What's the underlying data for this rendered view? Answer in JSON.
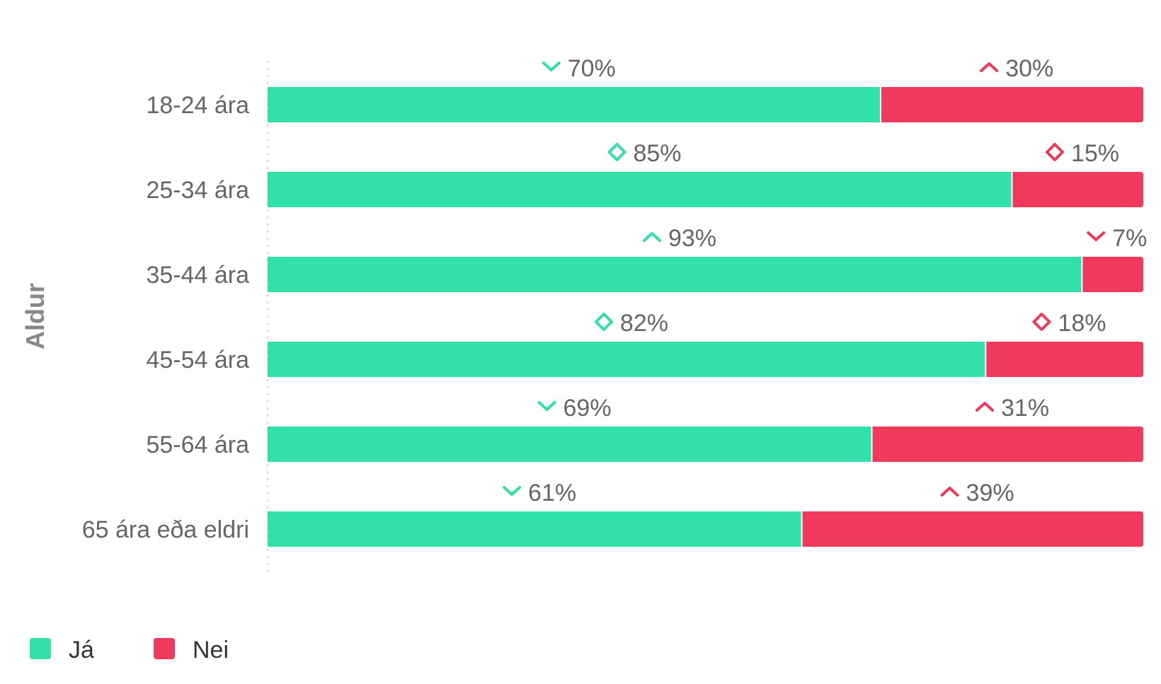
{
  "chart_data": {
    "type": "bar",
    "orientation": "horizontal",
    "stacked": "percent",
    "categories": [
      "18-24 ára",
      "25-34 ára",
      "35-44 ára",
      "45-54 ára",
      "55-64 ára",
      "65 ára eða eldri"
    ],
    "series": [
      {
        "name": "Já",
        "color": "#33e0aa",
        "values": [
          70,
          85,
          93,
          82,
          69,
          61
        ],
        "labels": [
          "70%",
          "85%",
          "93%",
          "82%",
          "69%",
          "61%"
        ],
        "trend_icons": [
          "chevron-down",
          "diamond",
          "chevron-up",
          "diamond",
          "chevron-down",
          "chevron-down"
        ]
      },
      {
        "name": "Nei",
        "color": "#ef3a5d",
        "values": [
          30,
          15,
          7,
          18,
          31,
          39
        ],
        "labels": [
          "30%",
          "15%",
          "7%",
          "18%",
          "31%",
          "39%"
        ],
        "trend_icons": [
          "chevron-up",
          "diamond",
          "chevron-down",
          "diamond",
          "chevron-up",
          "chevron-up"
        ]
      }
    ],
    "ylabel": "Aldur",
    "xlim": [
      0,
      100
    ],
    "grid": false,
    "legend_position": "bottom-left"
  }
}
